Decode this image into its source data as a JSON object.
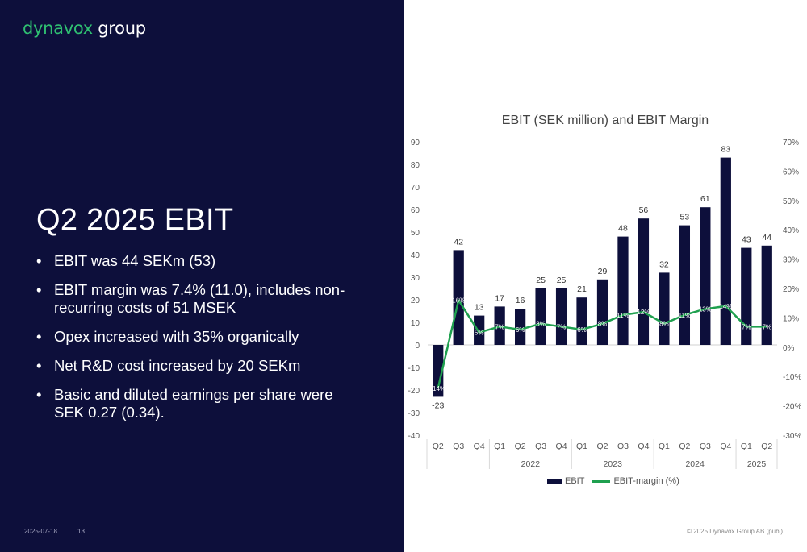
{
  "logo": {
    "brand": "dynavox",
    "group": " group"
  },
  "slide": {
    "title": "Q2 2025 EBIT",
    "bullets": [
      "EBIT was 44 SEKm (53)",
      "EBIT margin was 7.4% (11.0), includes non-recurring costs of 51 MSEK",
      "Opex increased with 35% organically",
      "Net R&D cost increased by 20 SEKm",
      "Basic and diluted earnings per share were SEK 0.27 (0.34)."
    ]
  },
  "footer": {
    "date": "2025-07-18",
    "page": "13",
    "copyright": "© 2025 Dynavox Group AB (publ)"
  },
  "colors": {
    "bar": "#0d0f3b",
    "line": "#1fa04f",
    "panel": "#0d0f3b",
    "brand": "#2fbf71"
  },
  "chart_data": {
    "type": "bar",
    "title": "EBIT (SEK million) and EBIT Margin",
    "categories": [
      "Q2",
      "Q3",
      "Q4",
      "Q1",
      "Q2",
      "Q3",
      "Q4",
      "Q1",
      "Q2",
      "Q3",
      "Q4",
      "Q1",
      "Q2",
      "Q3",
      "Q4",
      "Q1",
      "Q2"
    ],
    "year_groups": [
      {
        "label": "",
        "count": 3
      },
      {
        "label": "2022",
        "count": 4
      },
      {
        "label": "2023",
        "count": 4
      },
      {
        "label": "2024",
        "count": 4
      },
      {
        "label": "2025",
        "count": 2
      }
    ],
    "series": [
      {
        "name": "EBIT",
        "type": "bar",
        "axis": "left",
        "values": [
          -23,
          42,
          13,
          17,
          16,
          25,
          25,
          21,
          29,
          48,
          56,
          32,
          53,
          61,
          83,
          43,
          44
        ],
        "labels": [
          "-23",
          "42",
          "13",
          "17",
          "16",
          "25",
          "25",
          "21",
          "29",
          "48",
          "56",
          "32",
          "53",
          "61",
          "83",
          "43",
          "44"
        ]
      },
      {
        "name": "EBIT-margin (%)",
        "type": "line",
        "axis": "right",
        "values": [
          -14,
          16,
          5,
          7,
          6,
          8,
          7,
          6,
          8,
          11,
          12,
          8,
          11,
          13,
          14,
          7,
          7
        ],
        "labels": [
          "-14%",
          "16%",
          "5%",
          "7%",
          "6%",
          "8%",
          "7%",
          "6%",
          "8%",
          "11%",
          "12%",
          "8%",
          "11%",
          "13%",
          "14%",
          "7%",
          "7%"
        ]
      }
    ],
    "ylim_left": [
      -40,
      90
    ],
    "yticks_left": [
      "90",
      "80",
      "70",
      "60",
      "50",
      "40",
      "30",
      "20",
      "10",
      "0",
      "-10",
      "-20",
      "-30",
      "-40"
    ],
    "ylim_right": [
      -30,
      70
    ],
    "yticks_right": [
      "70%",
      "60%",
      "50%",
      "40%",
      "30%",
      "20%",
      "10%",
      "0%",
      "-10%",
      "-20%",
      "-30%"
    ],
    "grid": false,
    "legend_position": "bottom"
  }
}
